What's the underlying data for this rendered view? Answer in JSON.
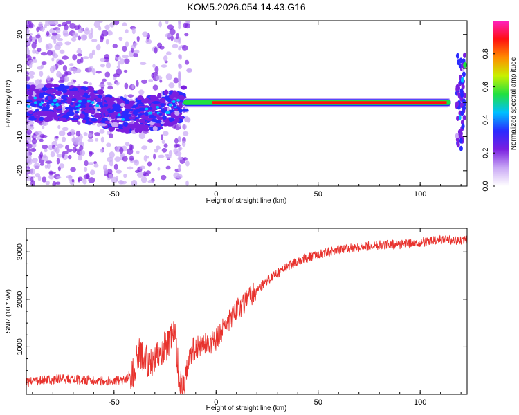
{
  "title": "KOM5.2026.054.14.43.G16",
  "chart_data": [
    {
      "type": "heatmap",
      "title": "",
      "xlabel": "Height of straight line (km)",
      "ylabel": "Frequency (Hz)",
      "xlim": [
        -93,
        123
      ],
      "ylim": [
        -24.5,
        24
      ],
      "xticks": [
        -50,
        0,
        50,
        100
      ],
      "yticks": [
        -20,
        -10,
        0,
        10,
        20
      ],
      "colorbar": {
        "label": "Normalized spectral amplitude",
        "range": [
          0.0,
          1.0
        ],
        "ticks": [
          0.0,
          0.2,
          0.4,
          0.6,
          0.8
        ],
        "colors": [
          "#ffffff",
          "#c9a8f5",
          "#7a1fe0",
          "#2a2aff",
          "#00c0ff",
          "#20e040",
          "#c8f000",
          "#ff8c00",
          "#ff1010",
          "#ff20c0"
        ]
      },
      "ridge": {
        "description_points_x": [
          -93,
          -80,
          -60,
          -45,
          -30,
          -20,
          -15,
          0,
          50,
          100,
          115,
          120,
          123
        ],
        "description_points_y": [
          0,
          0,
          -1,
          -4,
          -3,
          -1,
          0,
          0,
          0,
          0,
          0,
          10,
          11
        ]
      }
    },
    {
      "type": "line",
      "title": "",
      "xlabel": "Height of straight line (km)",
      "ylabel": "SNR (10 * v/v)",
      "xlim": [
        -93,
        123
      ],
      "ylim": [
        0,
        3500
      ],
      "xticks": [
        -50,
        0,
        50,
        100
      ],
      "yticks": [
        1000,
        2000,
        3000
      ],
      "color": "#e8322d",
      "series": [
        {
          "x": [
            -93,
            -85,
            -75,
            -65,
            -55,
            -45,
            -40,
            -38,
            -35,
            -30,
            -25,
            -22,
            -20,
            -18,
            -16,
            -14,
            -12,
            -10,
            -5,
            0,
            5,
            10,
            15,
            20,
            25,
            30,
            35,
            40,
            50,
            60,
            70,
            80,
            90,
            100,
            110,
            120,
            123
          ],
          "y": [
            250,
            300,
            330,
            300,
            280,
            300,
            500,
            900,
            700,
            750,
            1000,
            1200,
            1300,
            200,
            100,
            600,
            900,
            1000,
            1050,
            1150,
            1450,
            1750,
            2000,
            2200,
            2400,
            2550,
            2700,
            2800,
            2950,
            3050,
            3100,
            3150,
            3150,
            3200,
            3250,
            3250,
            3250
          ]
        }
      ]
    }
  ]
}
